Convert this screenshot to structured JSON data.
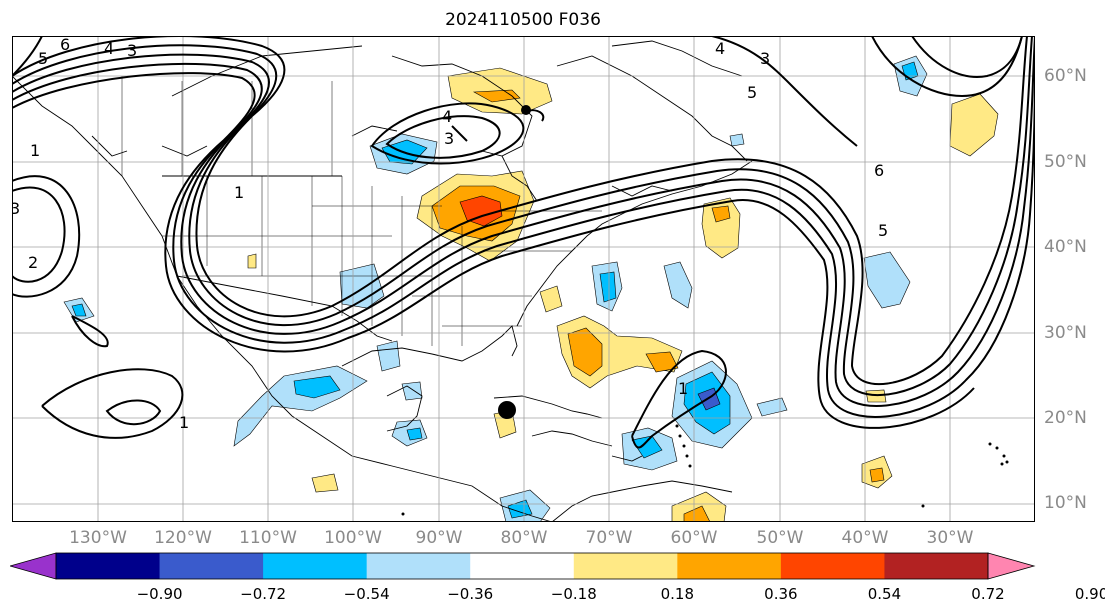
{
  "title": "2024110500 F036",
  "lat_labels": [
    "60°N",
    "50°N",
    "40°N",
    "30°N",
    "20°N",
    "10°N"
  ],
  "lon_labels": [
    "130°W",
    "120°W",
    "110°W",
    "100°W",
    "90°W",
    "80°W",
    "70°W",
    "60°W",
    "50°W",
    "40°W",
    "30°W"
  ],
  "colorbar": {
    "colors": [
      "#9932cc",
      "#00008b",
      "#3a5bcc",
      "#00bfff",
      "#b0e0fa",
      "#ffffff",
      "#ffe985",
      "#ffa500",
      "#ff4500",
      "#b22222",
      "#ff85b0"
    ],
    "tick_labels": [
      "−0.90",
      "−0.72",
      "−0.54",
      "−0.36",
      "−0.18",
      "0.18",
      "0.36",
      "0.54",
      "0.72",
      "0.90"
    ]
  },
  "contour_labels": [
    "6",
    "5",
    "4",
    "3",
    "1",
    "3",
    "2",
    "1",
    "4",
    "3",
    "5",
    "4",
    "3",
    "6",
    "5",
    "1",
    "1"
  ],
  "colors": {
    "contour": "#000000",
    "grid": "#a0a0a0",
    "axis_text": "#8a8a8a"
  }
}
